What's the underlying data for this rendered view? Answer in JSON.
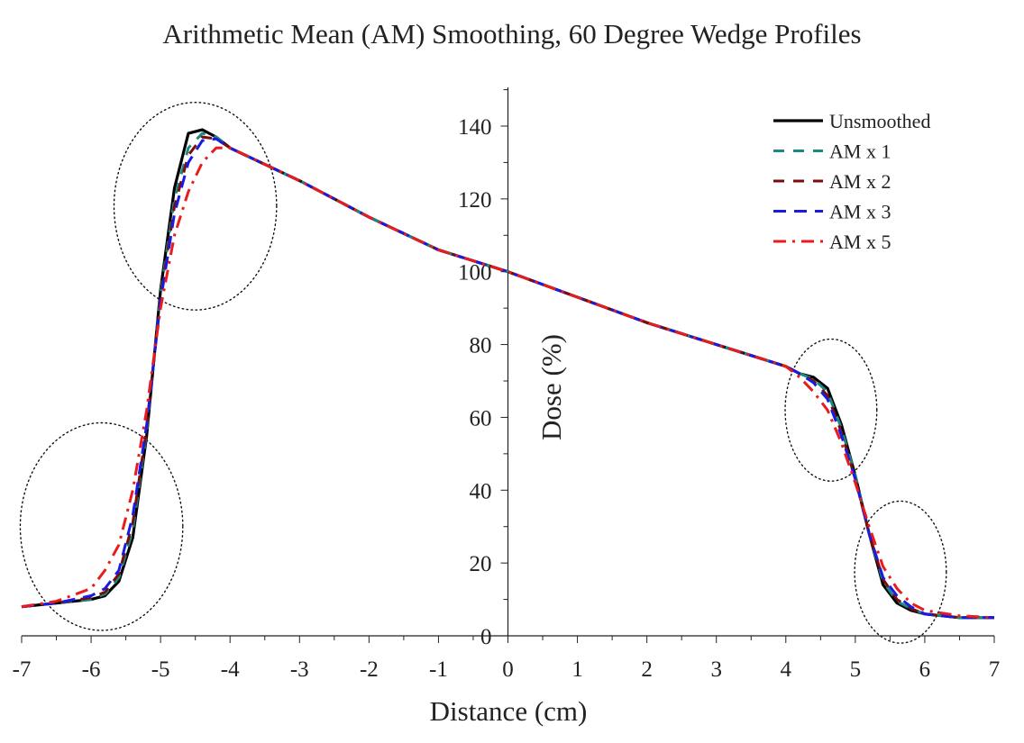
{
  "chart_data": {
    "type": "line",
    "title": "Arithmetic Mean (AM) Smoothing, 60 Degree Wedge Profiles",
    "xlabel": "Distance (cm)",
    "ylabel": "Dose (%)",
    "xlim": [
      -7,
      7
    ],
    "ylim": [
      0,
      150
    ],
    "xticks": [
      -7,
      -6,
      -5,
      -4,
      -3,
      -2,
      -1,
      0,
      1,
      2,
      3,
      4,
      5,
      6,
      7
    ],
    "yticks": [
      0,
      20,
      40,
      60,
      80,
      100,
      120,
      140
    ],
    "grid": false,
    "legend_position": "top-right",
    "series": [
      {
        "name": "Unsmoothed",
        "color": "#000000",
        "dash": "solid",
        "x": [
          -7,
          -6.5,
          -6,
          -5.8,
          -5.6,
          -5.4,
          -5.2,
          -5.0,
          -4.8,
          -4.6,
          -4.4,
          -4.2,
          -4.0,
          -3,
          -2,
          -1,
          0,
          1,
          2,
          3,
          4,
          4.2,
          4.4,
          4.6,
          4.8,
          5.0,
          5.2,
          5.4,
          5.6,
          5.8,
          6.0,
          6.5,
          7
        ],
        "y": [
          8,
          9,
          10,
          11,
          15,
          27,
          55,
          95,
          123,
          138,
          139,
          137,
          134,
          125,
          115,
          106,
          100,
          93,
          86,
          80,
          74,
          72,
          71,
          68,
          58,
          44,
          28,
          14,
          9,
          7,
          6,
          5,
          5
        ]
      },
      {
        "name": "AM x 1",
        "color": "#1a8a80",
        "dash": "12,10",
        "x": [
          -7,
          -6.5,
          -6,
          -5.8,
          -5.6,
          -5.4,
          -5.2,
          -5.0,
          -4.8,
          -4.6,
          -4.4,
          -4.2,
          -4.0,
          -3,
          -2,
          -1,
          0,
          1,
          2,
          3,
          4,
          4.2,
          4.4,
          4.6,
          4.8,
          5.0,
          5.2,
          5.4,
          5.6,
          5.8,
          6.0,
          6.5,
          7
        ],
        "y": [
          8,
          9,
          10,
          11.5,
          16,
          29,
          56,
          94,
          120,
          134,
          138,
          137,
          134,
          125,
          115,
          106,
          100,
          93,
          86,
          80,
          74,
          72,
          70.5,
          67,
          57,
          44,
          28,
          15,
          9.5,
          7.5,
          6,
          5,
          5
        ]
      },
      {
        "name": "AM x 2",
        "color": "#7a0c0c",
        "dash": "12,10",
        "x": [
          -7,
          -6.5,
          -6,
          -5.8,
          -5.6,
          -5.4,
          -5.2,
          -5.0,
          -4.8,
          -4.6,
          -4.4,
          -4.2,
          -4.0,
          -3,
          -2,
          -1,
          0,
          1,
          2,
          3,
          4,
          4.2,
          4.4,
          4.6,
          4.8,
          5.0,
          5.2,
          5.4,
          5.6,
          5.8,
          6.0,
          6.5,
          7
        ],
        "y": [
          8,
          9,
          10.5,
          12,
          17,
          31,
          57,
          93,
          118,
          132,
          137,
          136.5,
          134,
          125,
          115,
          106,
          100,
          93,
          86,
          80,
          74,
          72,
          70,
          66,
          56,
          43,
          28,
          15.5,
          10,
          7.5,
          6,
          5,
          5
        ]
      },
      {
        "name": "AM x 3",
        "color": "#1a1ae0",
        "dash": "14,9",
        "x": [
          -7,
          -6.5,
          -6,
          -5.8,
          -5.6,
          -5.4,
          -5.2,
          -5.0,
          -4.8,
          -4.6,
          -4.4,
          -4.2,
          -4.0,
          -3,
          -2,
          -1,
          0,
          1,
          2,
          3,
          4,
          4.2,
          4.4,
          4.6,
          4.8,
          5.0,
          5.2,
          5.4,
          5.6,
          5.8,
          6.0,
          6.5,
          7
        ],
        "y": [
          8,
          9,
          11,
          13,
          18,
          33,
          58,
          92,
          116,
          130,
          136,
          136.5,
          134,
          125,
          115,
          106,
          100,
          93,
          86,
          80,
          74,
          72,
          69.5,
          65,
          55,
          43,
          28,
          16,
          11,
          8,
          6,
          5,
          5
        ]
      },
      {
        "name": "AM x 5",
        "color": "#e81c1c",
        "dash": "14,7,3,7",
        "x": [
          -7,
          -6.5,
          -6,
          -5.8,
          -5.6,
          -5.4,
          -5.2,
          -5.0,
          -4.8,
          -4.6,
          -4.4,
          -4.2,
          -4.0,
          -3,
          -2,
          -1,
          0,
          1,
          2,
          3,
          4,
          4.2,
          4.4,
          4.6,
          4.8,
          5.0,
          5.2,
          5.4,
          5.6,
          5.8,
          6.0,
          6.5,
          7
        ],
        "y": [
          8,
          9.5,
          13,
          18,
          25,
          40,
          62,
          90,
          110,
          122,
          130,
          134,
          134,
          125,
          115,
          106,
          100,
          93,
          86,
          80,
          74,
          71,
          67,
          62,
          53,
          42,
          30,
          19,
          13,
          9,
          7,
          5.5,
          5
        ]
      }
    ],
    "annotations": [
      {
        "type": "dotted-ellipse",
        "cx": -4.5,
        "cy": 118,
        "rx": 1.17,
        "ry": 28.5
      },
      {
        "type": "dotted-ellipse",
        "cx": -5.85,
        "cy": 30,
        "rx": 1.17,
        "ry": 28.5
      },
      {
        "type": "dotted-ellipse",
        "cx": 4.65,
        "cy": 62,
        "rx": 0.66,
        "ry": 19.5
      },
      {
        "type": "dotted-ellipse",
        "cx": 5.65,
        "cy": 17.5,
        "rx": 0.66,
        "ry": 19.5
      }
    ]
  }
}
